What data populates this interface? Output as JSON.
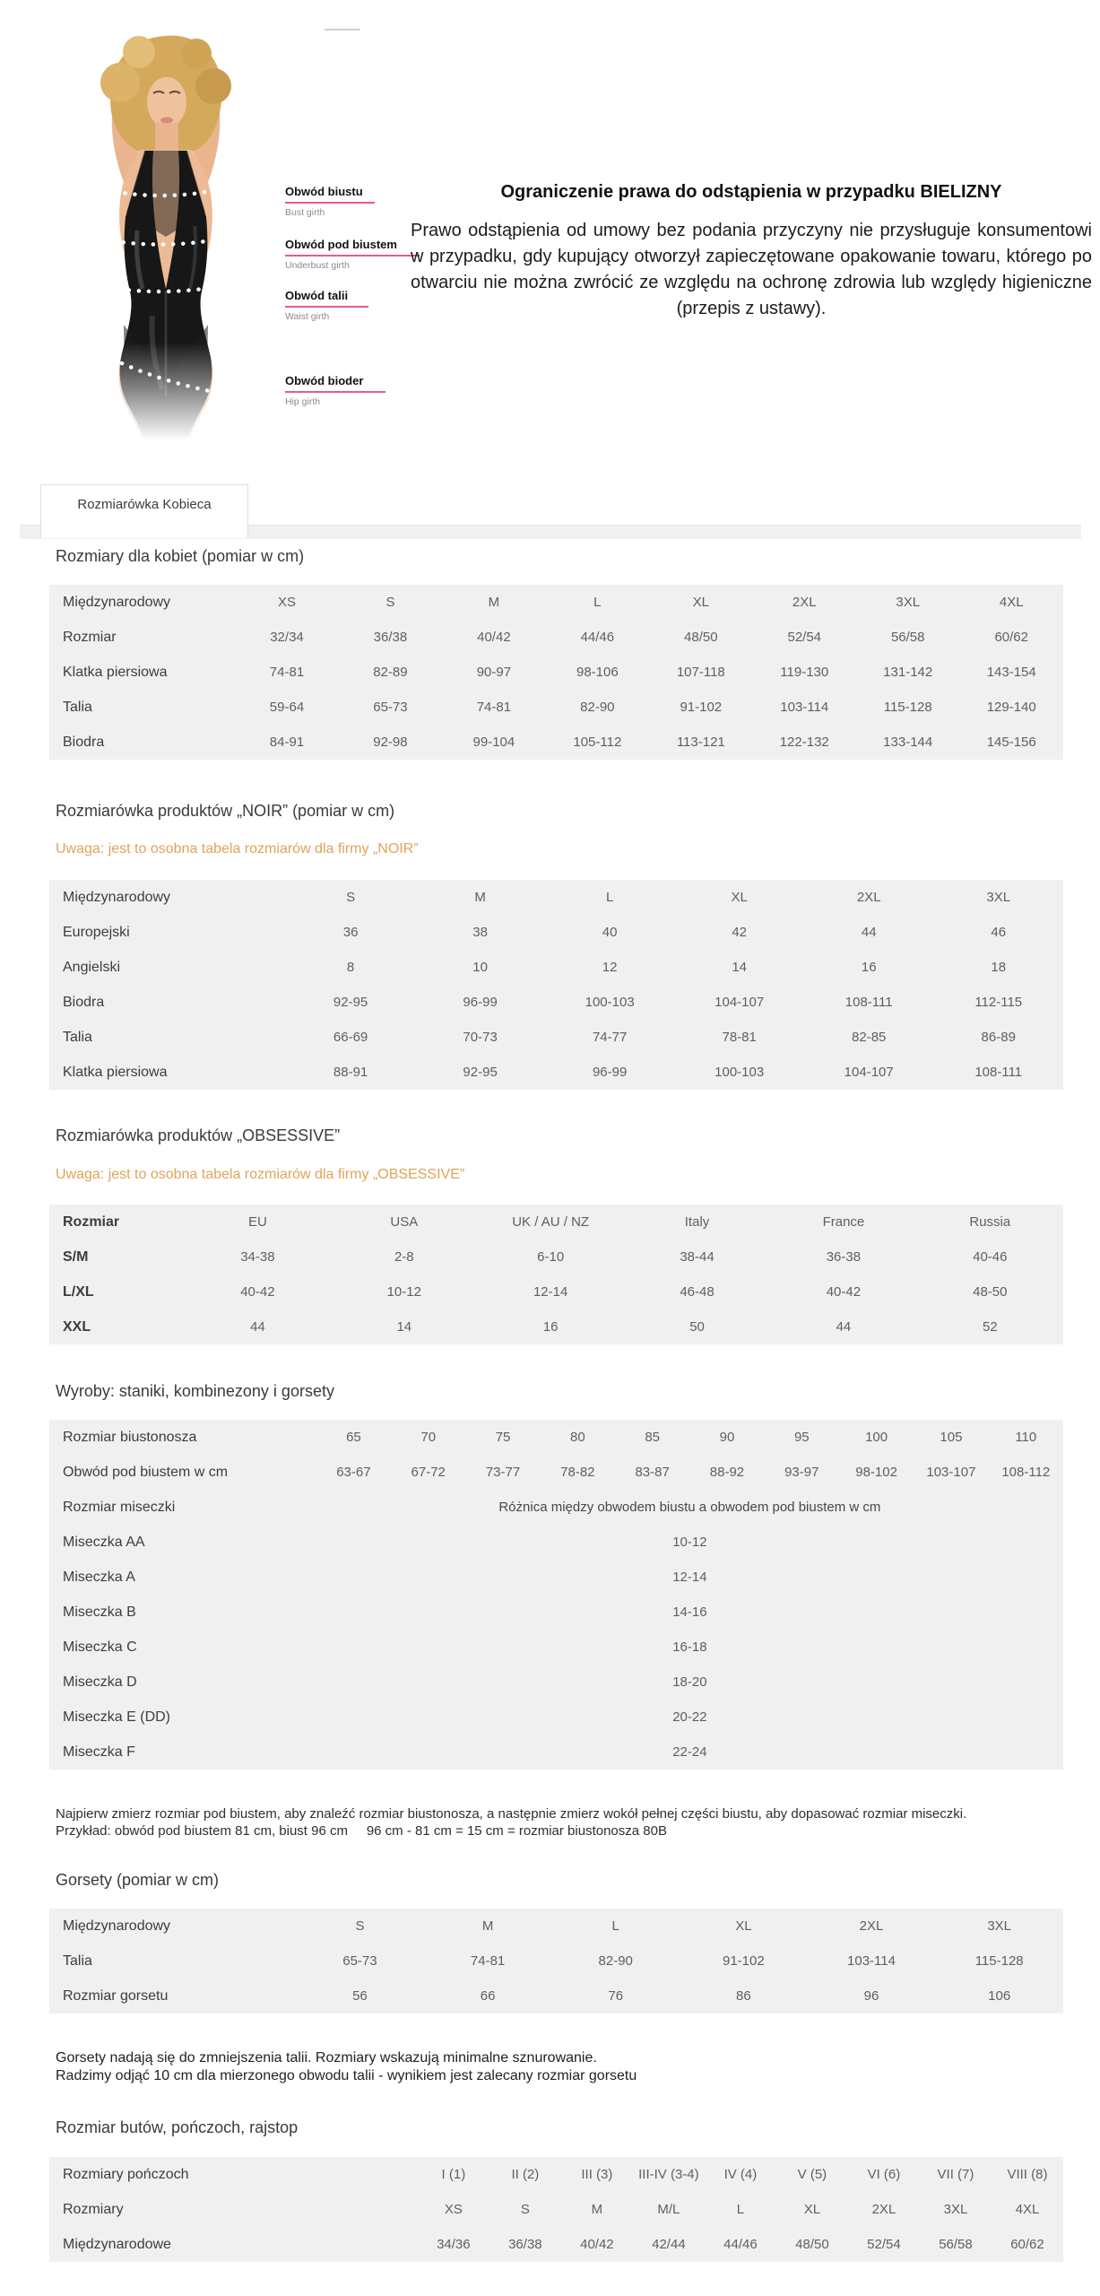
{
  "colors": {
    "accent_pink": "#e2607f",
    "note_orange": "#dfa458",
    "table_background": "#f0f0f0"
  },
  "measurements": [
    {
      "label": "Obwód biustu",
      "sub": "Bust girth"
    },
    {
      "label": "Obwód pod biustem",
      "sub": "Underbust girth"
    },
    {
      "label": "Obwód talii",
      "sub": "Waist girth"
    },
    {
      "label": "Obwód bioder",
      "sub": "Hip girth"
    }
  ],
  "notice": {
    "title": "Ograniczenie prawa do odstąpienia w przypadku BIELIZNY",
    "body": "Prawo odstąpienia od umowy bez podania przyczyny nie przysługuje konsumentowi w przypadku, gdy kupujący otworzył zapieczętowane opakowanie towaru, którego po otwarciu nie można zwrócić ze względu na ochronę zdrowia lub względy higieniczne (przepis z ustawy)."
  },
  "tab": {
    "label": "Rozmiarówka Kobieca"
  },
  "tables": {
    "women": {
      "heading": "Rozmiary dla kobiet (pomiar w cm)",
      "rows": [
        [
          "Międzynarodowy",
          "XS",
          "S",
          "M",
          "L",
          "XL",
          "2XL",
          "3XL",
          "4XL"
        ],
        [
          "Rozmiar",
          "32/34",
          "36/38",
          "40/42",
          "44/46",
          "48/50",
          "52/54",
          "56/58",
          "60/62"
        ],
        [
          "Klatka piersiowa",
          "74-81",
          "82-89",
          "90-97",
          "98-106",
          "107-118",
          "119-130",
          "131-142",
          "143-154"
        ],
        [
          "Talia",
          "59-64",
          "65-73",
          "74-81",
          "82-90",
          "91-102",
          "103-114",
          "115-128",
          "129-140"
        ],
        [
          "Biodra",
          "84-91",
          "92-98",
          "99-104",
          "105-112",
          "113-121",
          "122-132",
          "133-144",
          "145-156"
        ]
      ]
    },
    "noir": {
      "heading": "Rozmiarówka produktów „NOIR” (pomiar w cm)",
      "note": "Uwaga: jest to osobna tabela rozmiarów dla firmy „NOIR”",
      "rows": [
        [
          "Międzynarodowy",
          "S",
          "M",
          "L",
          "XL",
          "2XL",
          "3XL"
        ],
        [
          "Europejski",
          "36",
          "38",
          "40",
          "42",
          "44",
          "46"
        ],
        [
          "Angielski",
          "8",
          "10",
          "12",
          "14",
          "16",
          "18"
        ],
        [
          "Biodra",
          "92-95",
          "96-99",
          "100-103",
          "104-107",
          "108-111",
          "112-115"
        ],
        [
          "Talia",
          "66-69",
          "70-73",
          "74-77",
          "78-81",
          "82-85",
          "86-89"
        ],
        [
          "Klatka piersiowa",
          "88-91",
          "92-95",
          "96-99",
          "100-103",
          "104-107",
          "108-111"
        ]
      ]
    },
    "obsessive": {
      "heading": "Rozmiarówka produktów „OBSESSIVE”",
      "note": "Uwaga: jest to osobna tabela rozmiarów dla firmy „OBSESSIVE”",
      "rows": [
        [
          "Rozmiar",
          "EU",
          "USA",
          "UK / AU / NZ",
          "Italy",
          "France",
          "Russia"
        ],
        [
          "S/M",
          "34-38",
          "2-8",
          "6-10",
          "38-44",
          "36-38",
          "40-46"
        ],
        [
          "L/XL",
          "40-42",
          "10-12",
          "12-14",
          "46-48",
          "40-42",
          "48-50"
        ],
        [
          "XXL",
          "44",
          "14",
          "16",
          "50",
          "44",
          "52"
        ]
      ]
    },
    "bras": {
      "heading": "Wyroby: staniki, kombinezony i gorsety",
      "rows": [
        [
          "Rozmiar biustonosza",
          "65",
          "70",
          "75",
          "80",
          "85",
          "90",
          "95",
          "100",
          "105",
          "110"
        ],
        [
          "Obwód pod biustem w cm",
          "63-67",
          "67-72",
          "73-77",
          "78-82",
          "83-87",
          "88-92",
          "93-97",
          "98-102",
          "103-107",
          "108-112"
        ],
        [
          "Rozmiar miseczki",
          "Różnica między obwodem biustu a obwodem pod biustem w cm"
        ],
        [
          "Miseczka AA",
          "10-12"
        ],
        [
          "Miseczka A",
          "12-14"
        ],
        [
          "Miseczka B",
          "14-16"
        ],
        [
          "Miseczka C",
          "16-18"
        ],
        [
          "Miseczka D",
          "18-20"
        ],
        [
          "Miseczka E  (DD)",
          "20-22"
        ],
        [
          "Miseczka F",
          "22-24"
        ]
      ],
      "note_line1": "Najpierw zmierz rozmiar pod biustem, aby znaleźć rozmiar biustonosza, a następnie zmierz wokół pełnej części biustu, aby dopasować rozmiar miseczki.",
      "note_line2": "Przykład: obwód pod biustem 81 cm, biust 96 cm     96 cm - 81 cm = 15 cm = rozmiar biustonosza 80B"
    },
    "corsets": {
      "heading": "Gorsety (pomiar w cm)",
      "rows": [
        [
          "Międzynarodowy",
          "S",
          "M",
          "L",
          "XL",
          "2XL",
          "3XL"
        ],
        [
          "Talia",
          "65-73",
          "74-81",
          "82-90",
          "91-102",
          "103-114",
          "115-128"
        ],
        [
          "Rozmiar gorsetu",
          "56",
          "66",
          "76",
          "86",
          "96",
          "106"
        ]
      ],
      "note_line1": "Gorsety nadają się do zmniejszenia talii. Rozmiary wskazują minimalne sznurowanie.",
      "note_line2": "Radzimy odjąć 10 cm dla mierzonego obwodu talii - wynikiem jest zalecany rozmiar gorsetu"
    },
    "stockings": {
      "heading": "Rozmiar butów, pończoch, rajstop",
      "rows": [
        [
          "Rozmiary pończoch",
          "I (1)",
          "II (2)",
          "III (3)",
          "III-IV (3-4)",
          "IV (4)",
          "V (5)",
          "VI (6)",
          "VII (7)",
          "VIII (8)"
        ],
        [
          "Rozmiary",
          "XS",
          "S",
          "M",
          "M/L",
          "L",
          "XL",
          "2XL",
          "3XL",
          "4XL"
        ],
        [
          "Międzynarodowe",
          "34/36",
          "36/38",
          "40/42",
          "42/44",
          "44/46",
          "48/50",
          "52/54",
          "56/58",
          "60/62"
        ]
      ]
    }
  }
}
